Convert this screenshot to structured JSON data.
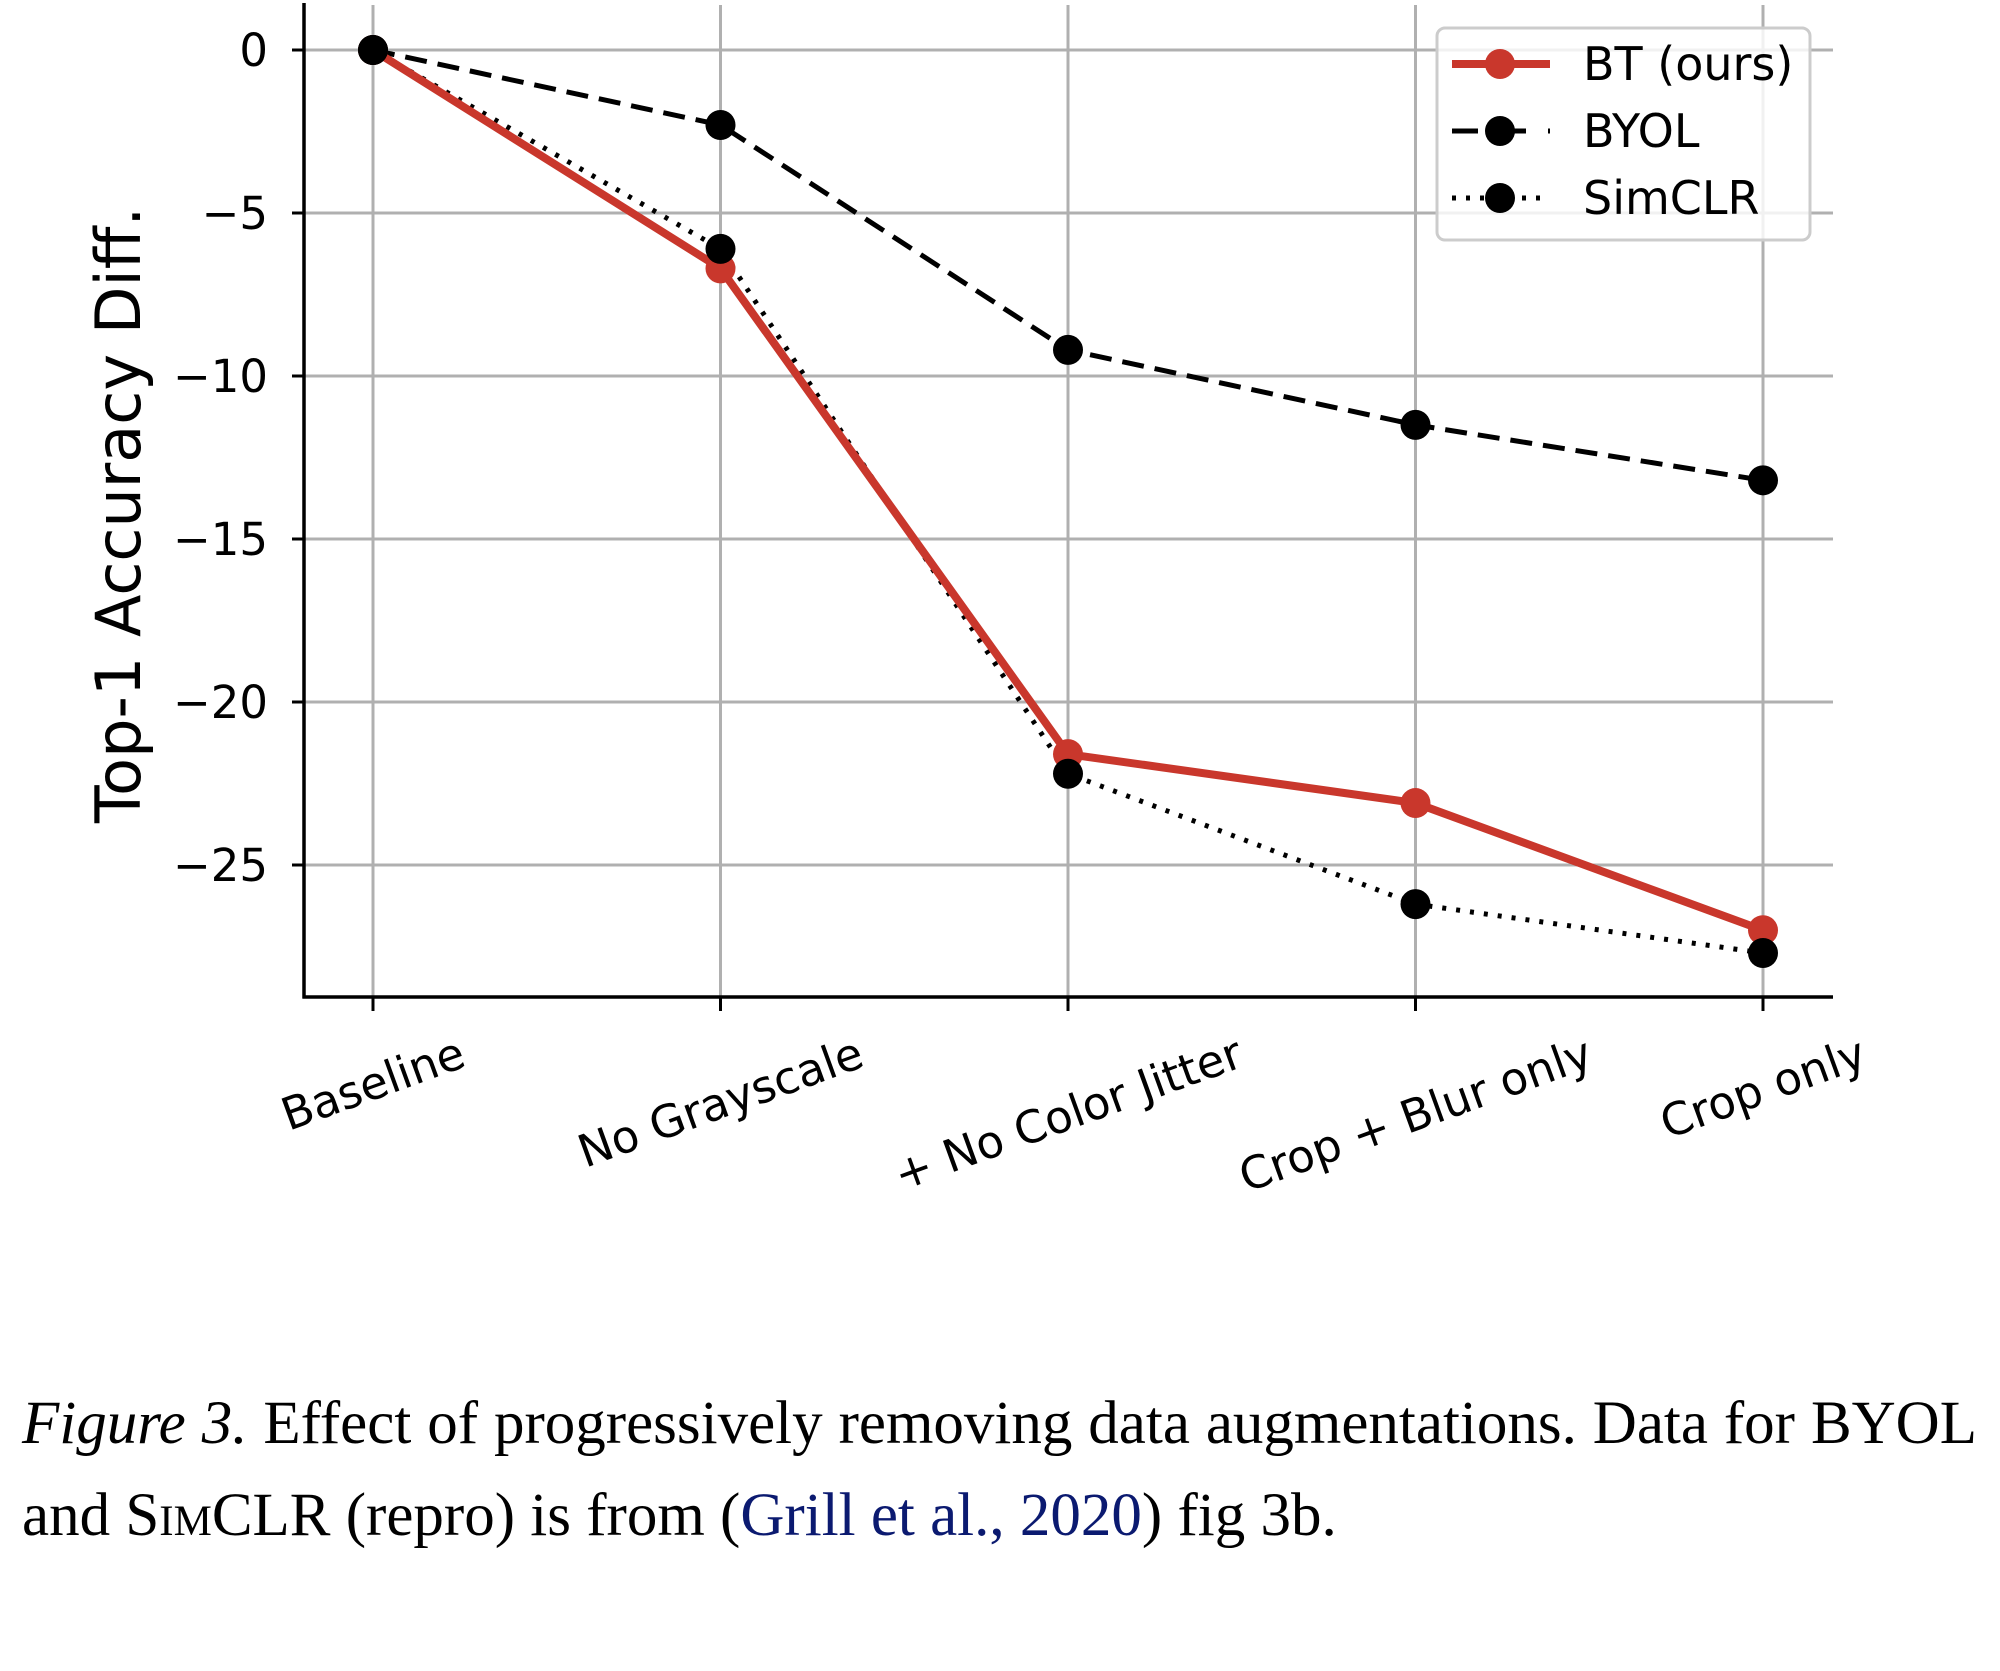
{
  "chart_data": {
    "type": "line",
    "title": "",
    "xlabel": "",
    "ylabel": "Top-1 Accuracy Diff.",
    "categories": [
      "Baseline",
      "No Grayscale",
      "+ No Color Jitter",
      "Crop + Blur only",
      "Crop only"
    ],
    "yticks": [
      0,
      -5,
      -10,
      -15,
      -20,
      -25
    ],
    "ytick_labels": [
      "0",
      "−5",
      "−10",
      "−15",
      "−20",
      "−25"
    ],
    "ylim": [
      -28.6,
      1.5
    ],
    "grid": true,
    "legend_position": "top-right",
    "xtick_rotation_deg": 20,
    "series": [
      {
        "name": "BT (ours)",
        "values": [
          0,
          -6.7,
          -21.6,
          -23.1,
          -27.0
        ],
        "color": "#c9372c",
        "linestyle": "solid",
        "marker": "circle"
      },
      {
        "name": "BYOL",
        "values": [
          0,
          -2.3,
          -9.2,
          -11.5,
          -13.2
        ],
        "color": "#000000",
        "linestyle": "dashed",
        "marker": "circle"
      },
      {
        "name": "SimCLR",
        "values": [
          0,
          -6.1,
          -22.2,
          -26.2,
          -27.7
        ],
        "color": "#000000",
        "linestyle": "dotted",
        "marker": "circle"
      }
    ]
  },
  "caption": {
    "figure_label": "Figure 3.",
    "text_1": " Effect of progressively removing data augmentations. Data for BYOL and ",
    "simclr_S": "S",
    "simclr_rest": "im",
    "simclr_end": "CLR",
    "text_2": " (repro) is from (",
    "citation": "Grill et al., 2020",
    "text_3": ") fig 3b.",
    "link_color": "#0b1a70"
  }
}
